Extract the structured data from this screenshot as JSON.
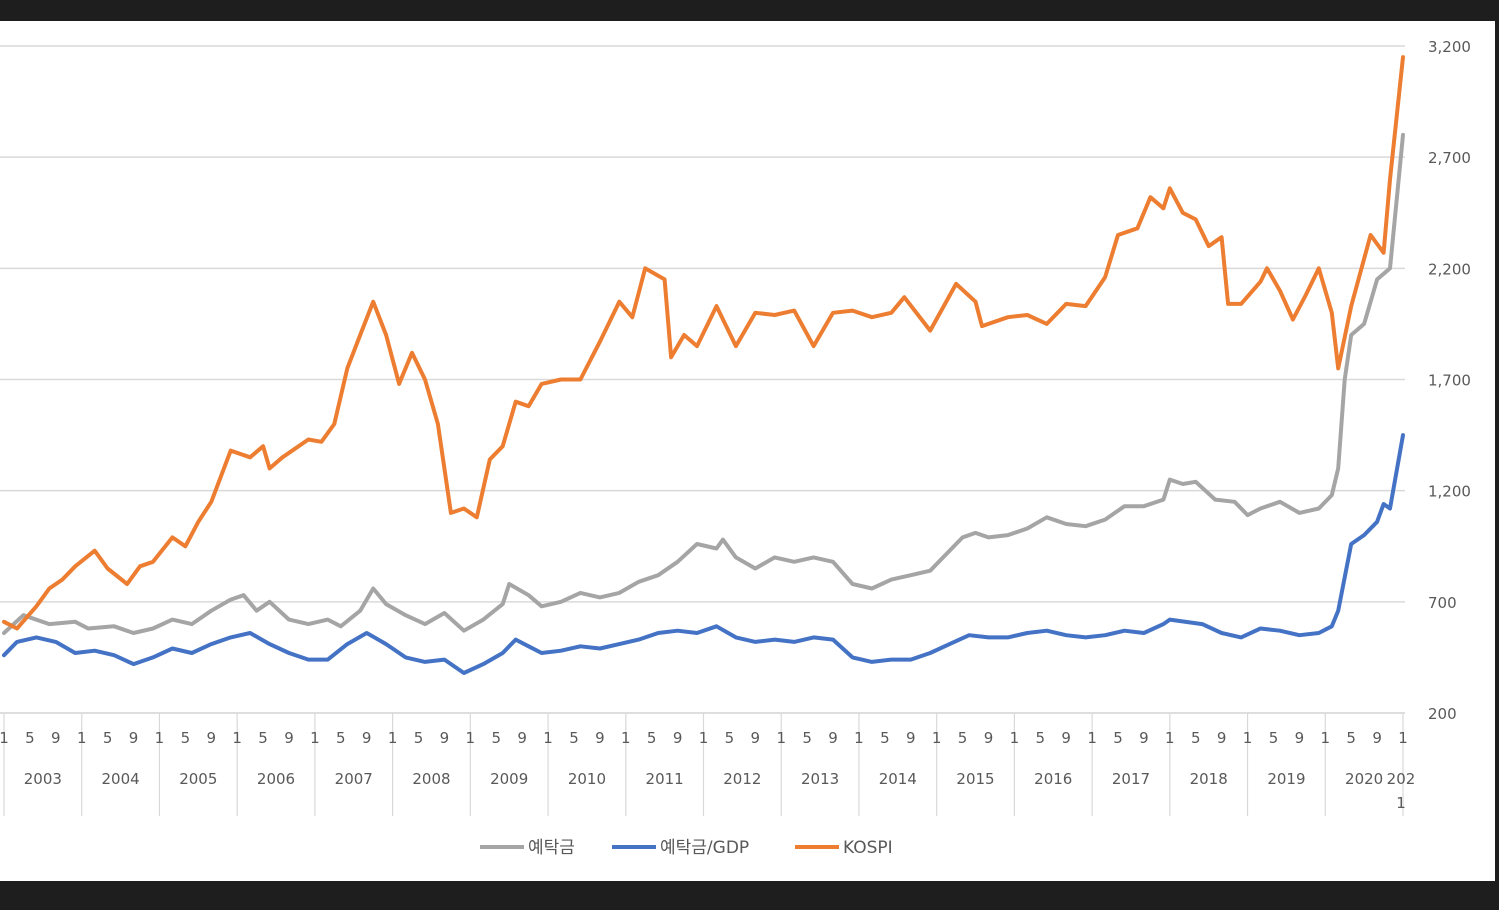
{
  "chart_data": {
    "type": "line",
    "title": "",
    "xlabel": "",
    "ylabel": "",
    "ylim": [
      200,
      3200
    ],
    "y_ticks": [
      "3,200",
      "2,700",
      "2,200",
      "1,700",
      "1,200",
      "700",
      "200"
    ],
    "grid": true,
    "legend_position": "bottom",
    "month_tick_labels": [
      "1",
      "5",
      "9"
    ],
    "years": [
      "2003",
      "2004",
      "2005",
      "2006",
      "2007",
      "2008",
      "2009",
      "2010",
      "2011",
      "2012",
      "2013",
      "2014",
      "2015",
      "2016",
      "2017",
      "2018",
      "2019",
      "2020"
    ],
    "last_year_label": [
      "202",
      "1"
    ],
    "x_range": [
      "2003-01",
      "2021-01"
    ],
    "series": [
      {
        "name": "예탁금",
        "color": "#a5a5a5",
        "points": [
          [
            "2003-01",
            560
          ],
          [
            "2003-04",
            640
          ],
          [
            "2003-08",
            600
          ],
          [
            "2003-12",
            610
          ],
          [
            "2004-02",
            580
          ],
          [
            "2004-06",
            590
          ],
          [
            "2004-09",
            560
          ],
          [
            "2004-12",
            580
          ],
          [
            "2005-03",
            620
          ],
          [
            "2005-06",
            600
          ],
          [
            "2005-09",
            660
          ],
          [
            "2005-12",
            710
          ],
          [
            "2006-02",
            730
          ],
          [
            "2006-04",
            660
          ],
          [
            "2006-06",
            700
          ],
          [
            "2006-09",
            620
          ],
          [
            "2006-12",
            600
          ],
          [
            "2007-03",
            620
          ],
          [
            "2007-05",
            590
          ],
          [
            "2007-08",
            660
          ],
          [
            "2007-10",
            760
          ],
          [
            "2007-12",
            690
          ],
          [
            "2008-03",
            640
          ],
          [
            "2008-06",
            600
          ],
          [
            "2008-09",
            650
          ],
          [
            "2008-12",
            570
          ],
          [
            "2009-03",
            620
          ],
          [
            "2009-06",
            690
          ],
          [
            "2009-07",
            780
          ],
          [
            "2009-10",
            730
          ],
          [
            "2009-12",
            680
          ],
          [
            "2010-03",
            700
          ],
          [
            "2010-06",
            740
          ],
          [
            "2010-09",
            720
          ],
          [
            "2010-12",
            740
          ],
          [
            "2011-03",
            790
          ],
          [
            "2011-06",
            820
          ],
          [
            "2011-09",
            880
          ],
          [
            "2011-12",
            960
          ],
          [
            "2012-03",
            940
          ],
          [
            "2012-04",
            980
          ],
          [
            "2012-06",
            900
          ],
          [
            "2012-09",
            850
          ],
          [
            "2012-12",
            900
          ],
          [
            "2013-03",
            880
          ],
          [
            "2013-06",
            900
          ],
          [
            "2013-09",
            880
          ],
          [
            "2013-12",
            780
          ],
          [
            "2014-03",
            760
          ],
          [
            "2014-06",
            800
          ],
          [
            "2014-09",
            820
          ],
          [
            "2014-12",
            840
          ],
          [
            "2015-02",
            900
          ],
          [
            "2015-05",
            990
          ],
          [
            "2015-07",
            1010
          ],
          [
            "2015-09",
            990
          ],
          [
            "2015-12",
            1000
          ],
          [
            "2016-03",
            1030
          ],
          [
            "2016-06",
            1080
          ],
          [
            "2016-09",
            1050
          ],
          [
            "2016-12",
            1040
          ],
          [
            "2017-03",
            1070
          ],
          [
            "2017-06",
            1130
          ],
          [
            "2017-09",
            1130
          ],
          [
            "2017-12",
            1160
          ],
          [
            "2018-01",
            1250
          ],
          [
            "2018-03",
            1230
          ],
          [
            "2018-05",
            1240
          ],
          [
            "2018-08",
            1160
          ],
          [
            "2018-11",
            1150
          ],
          [
            "2019-01",
            1090
          ],
          [
            "2019-03",
            1120
          ],
          [
            "2019-06",
            1150
          ],
          [
            "2019-09",
            1100
          ],
          [
            "2019-12",
            1120
          ],
          [
            "2020-02",
            1180
          ],
          [
            "2020-03",
            1300
          ],
          [
            "2020-04",
            1700
          ],
          [
            "2020-05",
            1900
          ],
          [
            "2020-07",
            1950
          ],
          [
            "2020-09",
            2150
          ],
          [
            "2020-11",
            2200
          ],
          [
            "2021-01",
            2800
          ]
        ]
      },
      {
        "name": "예탁금/GDP",
        "color": "#4472c4",
        "points": [
          [
            "2003-01",
            460
          ],
          [
            "2003-03",
            520
          ],
          [
            "2003-06",
            540
          ],
          [
            "2003-09",
            520
          ],
          [
            "2003-12",
            470
          ],
          [
            "2004-03",
            480
          ],
          [
            "2004-06",
            460
          ],
          [
            "2004-09",
            420
          ],
          [
            "2004-12",
            450
          ],
          [
            "2005-03",
            490
          ],
          [
            "2005-06",
            470
          ],
          [
            "2005-09",
            510
          ],
          [
            "2005-12",
            540
          ],
          [
            "2006-03",
            560
          ],
          [
            "2006-06",
            510
          ],
          [
            "2006-09",
            470
          ],
          [
            "2006-12",
            440
          ],
          [
            "2007-03",
            440
          ],
          [
            "2007-06",
            510
          ],
          [
            "2007-09",
            560
          ],
          [
            "2007-12",
            510
          ],
          [
            "2008-03",
            450
          ],
          [
            "2008-06",
            430
          ],
          [
            "2008-09",
            440
          ],
          [
            "2008-12",
            380
          ],
          [
            "2009-03",
            420
          ],
          [
            "2009-06",
            470
          ],
          [
            "2009-08",
            530
          ],
          [
            "2009-10",
            500
          ],
          [
            "2009-12",
            470
          ],
          [
            "2010-03",
            480
          ],
          [
            "2010-06",
            500
          ],
          [
            "2010-09",
            490
          ],
          [
            "2010-12",
            510
          ],
          [
            "2011-03",
            530
          ],
          [
            "2011-06",
            560
          ],
          [
            "2011-09",
            570
          ],
          [
            "2011-12",
            560
          ],
          [
            "2012-03",
            590
          ],
          [
            "2012-06",
            540
          ],
          [
            "2012-09",
            520
          ],
          [
            "2012-12",
            530
          ],
          [
            "2013-03",
            520
          ],
          [
            "2013-06",
            540
          ],
          [
            "2013-09",
            530
          ],
          [
            "2013-12",
            450
          ],
          [
            "2014-03",
            430
          ],
          [
            "2014-06",
            440
          ],
          [
            "2014-09",
            440
          ],
          [
            "2014-12",
            470
          ],
          [
            "2015-03",
            510
          ],
          [
            "2015-06",
            550
          ],
          [
            "2015-09",
            540
          ],
          [
            "2015-12",
            540
          ],
          [
            "2016-03",
            560
          ],
          [
            "2016-06",
            570
          ],
          [
            "2016-09",
            550
          ],
          [
            "2016-12",
            540
          ],
          [
            "2017-03",
            550
          ],
          [
            "2017-06",
            570
          ],
          [
            "2017-09",
            560
          ],
          [
            "2017-12",
            600
          ],
          [
            "2018-01",
            620
          ],
          [
            "2018-06",
            600
          ],
          [
            "2018-09",
            560
          ],
          [
            "2018-12",
            540
          ],
          [
            "2019-03",
            580
          ],
          [
            "2019-06",
            570
          ],
          [
            "2019-09",
            550
          ],
          [
            "2019-12",
            560
          ],
          [
            "2020-02",
            590
          ],
          [
            "2020-03",
            660
          ],
          [
            "2020-05",
            960
          ],
          [
            "2020-07",
            1000
          ],
          [
            "2020-09",
            1060
          ],
          [
            "2020-10",
            1140
          ],
          [
            "2020-11",
            1120
          ],
          [
            "2021-01",
            1450
          ]
        ]
      },
      {
        "name": "KOSPI",
        "color": "#ed7d31",
        "points": [
          [
            "2003-01",
            610
          ],
          [
            "2003-03",
            580
          ],
          [
            "2003-06",
            680
          ],
          [
            "2003-08",
            760
          ],
          [
            "2003-10",
            800
          ],
          [
            "2003-12",
            860
          ],
          [
            "2004-03",
            930
          ],
          [
            "2004-05",
            850
          ],
          [
            "2004-08",
            780
          ],
          [
            "2004-10",
            860
          ],
          [
            "2004-12",
            880
          ],
          [
            "2005-03",
            990
          ],
          [
            "2005-05",
            950
          ],
          [
            "2005-07",
            1060
          ],
          [
            "2005-09",
            1150
          ],
          [
            "2005-12",
            1380
          ],
          [
            "2006-03",
            1350
          ],
          [
            "2006-05",
            1400
          ],
          [
            "2006-06",
            1300
          ],
          [
            "2006-08",
            1350
          ],
          [
            "2006-12",
            1430
          ],
          [
            "2007-02",
            1420
          ],
          [
            "2007-04",
            1500
          ],
          [
            "2007-06",
            1750
          ],
          [
            "2007-08",
            1900
          ],
          [
            "2007-10",
            2050
          ],
          [
            "2007-12",
            1900
          ],
          [
            "2008-02",
            1680
          ],
          [
            "2008-04",
            1820
          ],
          [
            "2008-06",
            1700
          ],
          [
            "2008-08",
            1500
          ],
          [
            "2008-10",
            1100
          ],
          [
            "2008-12",
            1120
          ],
          [
            "2009-02",
            1080
          ],
          [
            "2009-04",
            1340
          ],
          [
            "2009-06",
            1400
          ],
          [
            "2009-08",
            1600
          ],
          [
            "2009-10",
            1580
          ],
          [
            "2009-12",
            1680
          ],
          [
            "2010-03",
            1700
          ],
          [
            "2010-06",
            1700
          ],
          [
            "2010-09",
            1870
          ],
          [
            "2010-12",
            2050
          ],
          [
            "2011-02",
            1980
          ],
          [
            "2011-04",
            2200
          ],
          [
            "2011-07",
            2150
          ],
          [
            "2011-08",
            1800
          ],
          [
            "2011-10",
            1900
          ],
          [
            "2011-12",
            1850
          ],
          [
            "2012-03",
            2030
          ],
          [
            "2012-06",
            1850
          ],
          [
            "2012-09",
            2000
          ],
          [
            "2012-12",
            1990
          ],
          [
            "2013-03",
            2010
          ],
          [
            "2013-06",
            1850
          ],
          [
            "2013-09",
            2000
          ],
          [
            "2013-12",
            2010
          ],
          [
            "2014-03",
            1980
          ],
          [
            "2014-06",
            2000
          ],
          [
            "2014-08",
            2070
          ],
          [
            "2014-12",
            1920
          ],
          [
            "2015-04",
            2130
          ],
          [
            "2015-07",
            2050
          ],
          [
            "2015-08",
            1940
          ],
          [
            "2015-12",
            1980
          ],
          [
            "2016-03",
            1990
          ],
          [
            "2016-06",
            1950
          ],
          [
            "2016-09",
            2040
          ],
          [
            "2016-12",
            2030
          ],
          [
            "2017-03",
            2160
          ],
          [
            "2017-05",
            2350
          ],
          [
            "2017-08",
            2380
          ],
          [
            "2017-10",
            2520
          ],
          [
            "2017-12",
            2470
          ],
          [
            "2018-01",
            2560
          ],
          [
            "2018-03",
            2450
          ],
          [
            "2018-05",
            2420
          ],
          [
            "2018-07",
            2300
          ],
          [
            "2018-09",
            2340
          ],
          [
            "2018-10",
            2040
          ],
          [
            "2018-12",
            2040
          ],
          [
            "2019-03",
            2140
          ],
          [
            "2019-04",
            2200
          ],
          [
            "2019-06",
            2100
          ],
          [
            "2019-08",
            1970
          ],
          [
            "2019-10",
            2080
          ],
          [
            "2019-12",
            2200
          ],
          [
            "2020-02",
            2000
          ],
          [
            "2020-03",
            1750
          ],
          [
            "2020-05",
            2030
          ],
          [
            "2020-08",
            2350
          ],
          [
            "2020-10",
            2270
          ],
          [
            "2020-11",
            2600
          ],
          [
            "2021-01",
            3150
          ]
        ]
      }
    ]
  }
}
